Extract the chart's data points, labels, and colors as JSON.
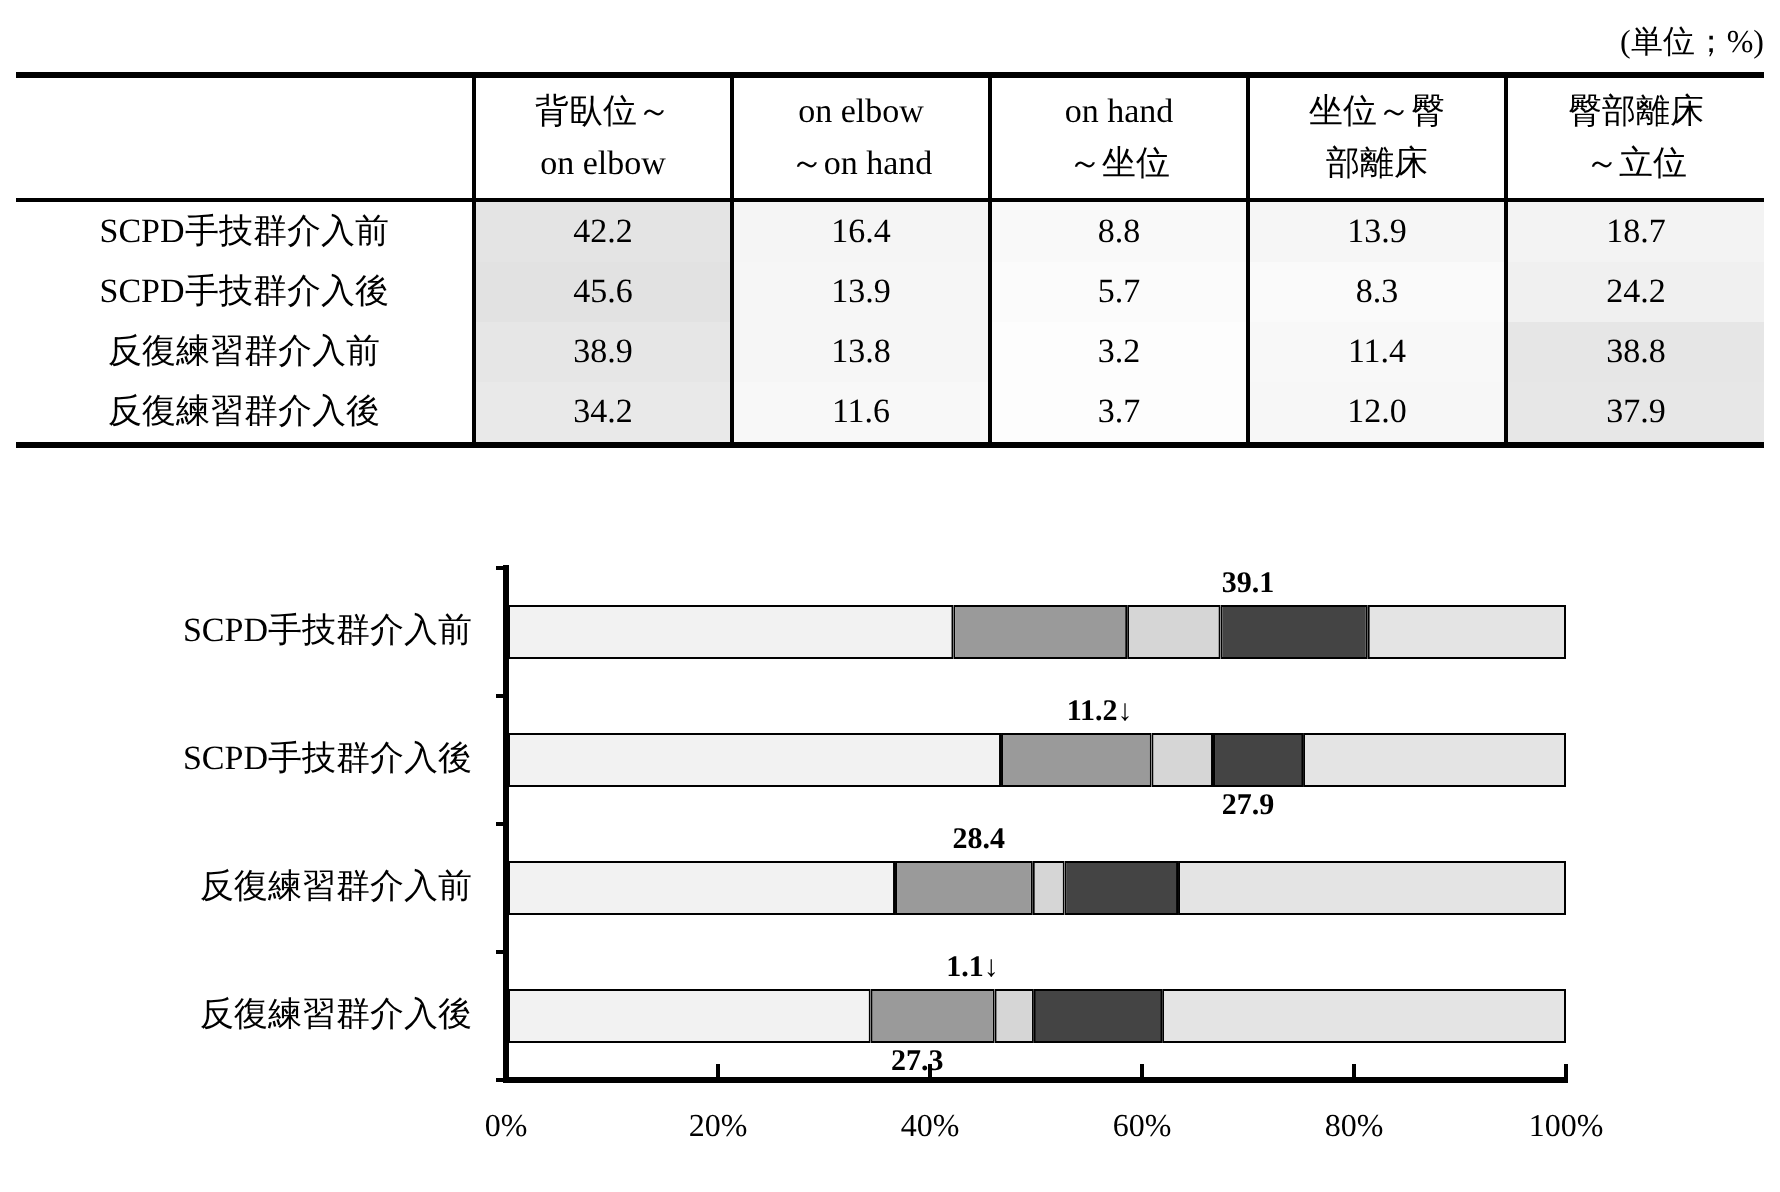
{
  "chart_data": [
    {
      "type": "heatmap",
      "annotations": [
        "(単位；%)"
      ],
      "categories": [
        "背臥位～\non elbow",
        "on elbow\n～on hand",
        "on hand\n～坐位",
        "坐位～臀部離床",
        "臀部離床～立位"
      ],
      "y_categories": [
        "SCPD手技群介入前",
        "SCPD手技群介入後",
        "反復練習群介入前",
        "反復練習群介入後"
      ],
      "cells": [
        [
          42.2,
          16.4,
          8.8,
          13.9,
          18.7
        ],
        [
          45.6,
          13.9,
          5.7,
          8.3,
          24.2
        ],
        [
          38.9,
          13.8,
          3.2,
          11.4,
          38.8
        ],
        [
          34.2,
          11.6,
          3.7,
          12.0,
          37.9
        ]
      ],
      "cell_labels": [
        [
          "42.2",
          "16.4",
          "8.8",
          "13.9",
          "18.7"
        ],
        [
          "45.6",
          "13.9",
          "5.7",
          "8.3",
          "24.2"
        ],
        [
          "38.9",
          "13.8",
          "3.2",
          "11.4",
          "38.8"
        ],
        [
          "34.2",
          "11.6",
          "3.7",
          "12.0",
          "37.9"
        ]
      ]
    },
    {
      "type": "bar",
      "orientation": "horizontal",
      "stacked": true,
      "categories": [
        "SCPD手技群介入前",
        "SCPD手技群介入後",
        "反復練習群介入前",
        "反復練習群介入後"
      ],
      "series": [
        {
          "color": "#f2f2f2",
          "values": [
            42.2,
            46.7,
            36.7,
            34.4
          ]
        },
        {
          "color": "#9a9a9a",
          "values": [
            16.4,
            14.2,
            13.0,
            11.7
          ]
        },
        {
          "color": "#d6d6d6",
          "values": [
            8.8,
            5.8,
            3.0,
            3.7
          ]
        },
        {
          "color": "#444444",
          "values": [
            13.9,
            8.5,
            10.7,
            12.1
          ]
        },
        {
          "color": "#e4e4e4",
          "values": [
            18.7,
            24.8,
            36.6,
            38.1
          ]
        }
      ],
      "xlim": [
        0,
        100
      ],
      "xticks": [
        {
          "value": 0,
          "label": "0%"
        },
        {
          "value": 20,
          "label": "20%"
        },
        {
          "value": 40,
          "label": "40%"
        },
        {
          "value": 60,
          "label": "60%"
        },
        {
          "value": 80,
          "label": "80%"
        },
        {
          "value": 100,
          "label": "100%"
        }
      ],
      "grid": false,
      "legend": false,
      "annotations": [
        "39.1",
        "11.2↓",
        "27.9",
        "28.4",
        "1.1↓",
        "27.3"
      ]
    }
  ]
}
